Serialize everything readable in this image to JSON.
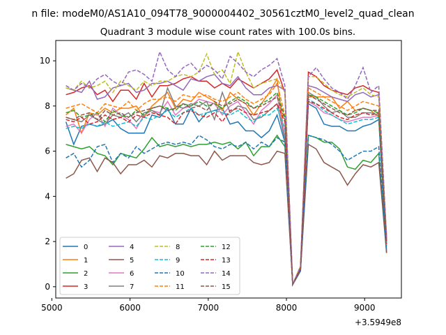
{
  "chart_data": {
    "type": "line",
    "suptitle": "n file: modeM0/AS1A10_094T78_9000004402_30561cztM0_level2_quad_clean",
    "title": "Quadrant 3 module wise count rates with 100.0s bins.",
    "xlabel": "",
    "ylabel": "",
    "x_offset_label": "+3.5949e8",
    "xlim": [
      5050,
      9470
    ],
    "ylim": [
      -0.5,
      10.9
    ],
    "xticks": [
      5000,
      6000,
      7000,
      8000,
      9000
    ],
    "yticks": [
      0,
      2,
      4,
      6,
      8,
      10
    ],
    "x": [
      5180,
      5280,
      5380,
      5480,
      5580,
      5680,
      5780,
      5880,
      5980,
      6080,
      6180,
      6280,
      6380,
      6480,
      6580,
      6680,
      6780,
      6880,
      6980,
      7080,
      7180,
      7280,
      7380,
      7480,
      7580,
      7680,
      7780,
      7880,
      7980,
      8080,
      8180,
      8280,
      8380,
      8480,
      8580,
      8680,
      8780,
      8880,
      8980,
      9080,
      9180,
      9280
    ],
    "legend": {
      "position": "lower-left",
      "columns": 4
    },
    "series": [
      {
        "name": "0",
        "color": "#1f77b4",
        "dash": "solid",
        "values": [
          7.3,
          6.3,
          7.1,
          7.2,
          7.1,
          7.2,
          7.4,
          7.0,
          6.8,
          6.8,
          6.8,
          7.6,
          7.5,
          7.9,
          7.2,
          7.2,
          7.9,
          7.3,
          7.7,
          7.8,
          7.9,
          7.2,
          7.3,
          6.9,
          6.9,
          6.6,
          6.9,
          7.6,
          6.4,
          0.1,
          0.7,
          8.1,
          7.9,
          7.2,
          7.1,
          7.1,
          6.9,
          6.9,
          7.1,
          7.2,
          7.4,
          1.5
        ]
      },
      {
        "name": "1",
        "color": "#ff7f0e",
        "dash": "solid",
        "values": [
          7.6,
          7.9,
          6.8,
          7.7,
          7.6,
          7.9,
          7.7,
          7.9,
          7.9,
          8.0,
          7.5,
          8.0,
          8.3,
          8.6,
          7.9,
          8.3,
          8.2,
          8.6,
          8.4,
          8.2,
          7.8,
          8.6,
          8.3,
          8.1,
          7.6,
          8.1,
          8.6,
          9.2,
          6.5,
          0.1,
          0.8,
          8.4,
          8.4,
          8.4,
          8.4,
          7.9,
          8.2,
          7.8,
          7.9,
          7.8,
          7.5,
          2.3
        ]
      },
      {
        "name": "2",
        "color": "#2ca02c",
        "dash": "solid",
        "values": [
          6.3,
          6.2,
          6.1,
          6.2,
          5.9,
          5.8,
          5.4,
          5.9,
          5.8,
          5.7,
          6.1,
          6.6,
          6.2,
          6.3,
          6.2,
          6.3,
          6.2,
          6.3,
          6.3,
          6.4,
          6.3,
          6.4,
          6.1,
          6.4,
          5.8,
          6.2,
          6.2,
          6.7,
          6.2,
          0.1,
          0.7,
          6.7,
          6.6,
          6.4,
          6.4,
          6.1,
          5.3,
          5.2,
          5.6,
          5.5,
          5.9,
          1.5
        ]
      },
      {
        "name": "3",
        "color": "#d62728",
        "dash": "solid",
        "values": [
          8.5,
          8.6,
          8.8,
          8.9,
          8.5,
          8.7,
          8.2,
          8.7,
          8.7,
          8.3,
          9.0,
          8.4,
          8.9,
          8.9,
          9.0,
          9.2,
          9.3,
          9.1,
          9.1,
          8.8,
          9.0,
          8.8,
          9.2,
          9.0,
          8.8,
          9.0,
          9.2,
          9.6,
          8.6,
          0.1,
          0.9,
          9.5,
          9.3,
          8.9,
          8.7,
          8.6,
          8.5,
          8.8,
          8.9,
          8.7,
          8.6,
          2.0
        ]
      },
      {
        "name": "4",
        "color": "#9467bd",
        "dash": "solid",
        "values": [
          8.8,
          8.7,
          8.6,
          9.1,
          8.3,
          8.4,
          8.8,
          8.9,
          9.0,
          8.6,
          8.7,
          9.0,
          9.0,
          9.1,
          8.9,
          8.7,
          9.2,
          9.1,
          9.3,
          9.4,
          9.0,
          8.9,
          9.3,
          8.8,
          8.5,
          8.5,
          8.8,
          8.9,
          8.7,
          0.1,
          0.8,
          8.9,
          8.8,
          8.6,
          8.4,
          8.3,
          8.2,
          8.5,
          8.6,
          8.4,
          8.5,
          2.1
        ]
      },
      {
        "name": "5",
        "color": "#8c564b",
        "dash": "solid",
        "values": [
          4.8,
          5.0,
          5.6,
          5.7,
          5.1,
          5.7,
          5.5,
          5.0,
          5.4,
          5.4,
          5.6,
          5.3,
          5.8,
          5.7,
          5.9,
          5.9,
          5.8,
          5.8,
          5.4,
          6.0,
          5.6,
          5.8,
          5.8,
          5.8,
          5.5,
          5.4,
          5.5,
          6.0,
          5.9,
          0.1,
          0.7,
          6.3,
          6.1,
          5.5,
          5.3,
          5.1,
          4.5,
          5.0,
          5.4,
          5.3,
          5.5,
          1.5
        ]
      },
      {
        "name": "6",
        "color": "#e377c2",
        "dash": "solid",
        "values": [
          7.1,
          7.2,
          6.8,
          7.4,
          7.7,
          7.1,
          7.9,
          7.6,
          7.4,
          7.0,
          7.6,
          7.8,
          7.7,
          8.2,
          7.6,
          7.9,
          8.0,
          8.3,
          8.2,
          8.1,
          7.6,
          8.0,
          8.2,
          7.7,
          7.2,
          7.8,
          8.1,
          8.5,
          6.6,
          0.1,
          0.8,
          8.2,
          8.0,
          7.7,
          7.6,
          7.4,
          7.3,
          7.4,
          7.5,
          7.5,
          7.6,
          2.0
        ]
      },
      {
        "name": "7",
        "color": "#7f7f7f",
        "dash": "solid",
        "values": [
          7.5,
          7.4,
          7.3,
          7.6,
          7.4,
          7.2,
          7.6,
          7.5,
          7.7,
          7.3,
          7.7,
          7.8,
          7.6,
          8.8,
          8.0,
          7.9,
          8.1,
          8.0,
          8.2,
          7.4,
          8.6,
          7.7,
          8.0,
          7.9,
          7.4,
          7.5,
          7.8,
          8.1,
          6.5,
          0.1,
          0.8,
          8.6,
          8.4,
          8.0,
          7.7,
          7.8,
          7.5,
          7.5,
          7.7,
          7.7,
          7.6,
          1.8
        ]
      },
      {
        "name": "8",
        "color": "#bcbd22",
        "dash": "dashed",
        "values": [
          8.8,
          8.7,
          9.1,
          8.8,
          8.9,
          9.1,
          8.6,
          9.1,
          8.9,
          8.7,
          9.1,
          8.9,
          9.1,
          9.1,
          9.3,
          9.4,
          9.3,
          9.5,
          10.3,
          9.4,
          9.6,
          9.0,
          10.4,
          9.5,
          8.8,
          9.0,
          9.1,
          9.2,
          8.6,
          0.1,
          0.9,
          9.3,
          9.3,
          9.0,
          8.7,
          8.5,
          8.4,
          8.6,
          8.8,
          8.5,
          8.4,
          2.2
        ]
      },
      {
        "name": "9",
        "color": "#17becf",
        "dash": "dashed",
        "values": [
          7.0,
          7.1,
          7.0,
          7.2,
          7.1,
          7.3,
          7.1,
          7.2,
          7.3,
          7.1,
          7.5,
          7.4,
          7.6,
          7.8,
          7.5,
          7.7,
          7.9,
          7.6,
          7.7,
          7.8,
          7.7,
          7.6,
          7.8,
          7.5,
          7.3,
          7.6,
          7.6,
          7.9,
          7.0,
          0.1,
          0.8,
          8.3,
          8.1,
          7.8,
          7.6,
          7.4,
          7.2,
          7.3,
          7.4,
          7.4,
          7.5,
          1.9
        ]
      },
      {
        "name": "10",
        "color": "#1f77b4",
        "dash": "dashed",
        "values": [
          5.7,
          5.9,
          5.3,
          5.6,
          6.2,
          6.3,
          5.5,
          5.9,
          5.7,
          6.2,
          5.9,
          6.1,
          6.3,
          6.4,
          6.3,
          6.4,
          6.3,
          6.7,
          6.5,
          6.2,
          6.1,
          6.3,
          6.2,
          6.4,
          6.1,
          6.4,
          6.2,
          6.6,
          6.4,
          0.1,
          0.7,
          6.7,
          6.6,
          6.5,
          6.3,
          6.0,
          5.6,
          5.8,
          6.0,
          6.0,
          6.2,
          1.6
        ]
      },
      {
        "name": "11",
        "color": "#ff7f0e",
        "dash": "dashed",
        "values": [
          7.9,
          8.0,
          8.1,
          7.9,
          7.7,
          8.1,
          8.0,
          7.9,
          8.2,
          7.8,
          8.1,
          8.3,
          8.3,
          8.4,
          8.2,
          8.5,
          8.4,
          8.4,
          8.5,
          8.3,
          8.2,
          8.4,
          8.6,
          8.3,
          8.1,
          8.3,
          8.5,
          9.0,
          7.6,
          0.1,
          0.9,
          8.8,
          8.6,
          8.4,
          8.2,
          8.0,
          7.8,
          8.0,
          8.2,
          8.1,
          8.0,
          2.1
        ]
      },
      {
        "name": "12",
        "color": "#2ca02c",
        "dash": "dashed",
        "values": [
          7.7,
          7.8,
          7.5,
          7.6,
          7.7,
          7.3,
          7.8,
          7.6,
          7.5,
          7.8,
          7.6,
          7.9,
          8.0,
          7.9,
          7.8,
          8.1,
          8.0,
          8.2,
          8.0,
          8.1,
          7.9,
          8.2,
          8.4,
          8.2,
          7.9,
          8.1,
          8.3,
          8.6,
          7.5,
          0.1,
          0.8,
          8.5,
          8.4,
          8.2,
          8.0,
          7.8,
          7.6,
          7.7,
          7.9,
          7.8,
          7.7,
          2.0
        ]
      },
      {
        "name": "13",
        "color": "#d62728",
        "dash": "dashed",
        "values": [
          7.4,
          7.3,
          7.5,
          7.2,
          7.3,
          7.6,
          7.4,
          7.5,
          7.3,
          7.6,
          7.5,
          7.7,
          7.6,
          7.5,
          7.2,
          7.7,
          7.8,
          7.6,
          7.5,
          7.7,
          7.3,
          7.8,
          7.9,
          7.7,
          7.6,
          7.7,
          7.8,
          8.1,
          7.3,
          0.1,
          0.8,
          8.2,
          8.1,
          7.9,
          7.7,
          7.5,
          7.4,
          7.6,
          7.7,
          7.6,
          7.7,
          1.9
        ]
      },
      {
        "name": "14",
        "color": "#9467bd",
        "dash": "dashed",
        "values": [
          8.9,
          8.7,
          9.0,
          8.8,
          9.2,
          9.4,
          9.1,
          8.9,
          9.5,
          9.6,
          9.4,
          9.1,
          10.4,
          9.6,
          9.3,
          9.7,
          9.9,
          9.5,
          9.8,
          9.6,
          9.2,
          10.2,
          9.9,
          9.5,
          9.3,
          9.6,
          9.8,
          10.1,
          8.9,
          0.1,
          0.9,
          9.3,
          9.7,
          9.2,
          8.8,
          8.6,
          8.3,
          8.9,
          9.7,
          8.6,
          8.9,
          2.2
        ]
      },
      {
        "name": "15",
        "color": "#8c564b",
        "dash": "dashed",
        "values": [
          7.5,
          7.4,
          7.6,
          7.7,
          7.4,
          7.8,
          7.6,
          7.7,
          7.5,
          7.7,
          7.8,
          7.9,
          8.0,
          7.8,
          7.9,
          8.1,
          7.9,
          8.0,
          7.8,
          8.2,
          8.0,
          8.1,
          8.3,
          8.1,
          7.9,
          8.0,
          8.2,
          8.4,
          7.4,
          0.1,
          0.8,
          8.5,
          8.3,
          8.1,
          7.9,
          7.7,
          7.6,
          7.8,
          7.9,
          7.8,
          7.8,
          2.0
        ]
      }
    ]
  }
}
